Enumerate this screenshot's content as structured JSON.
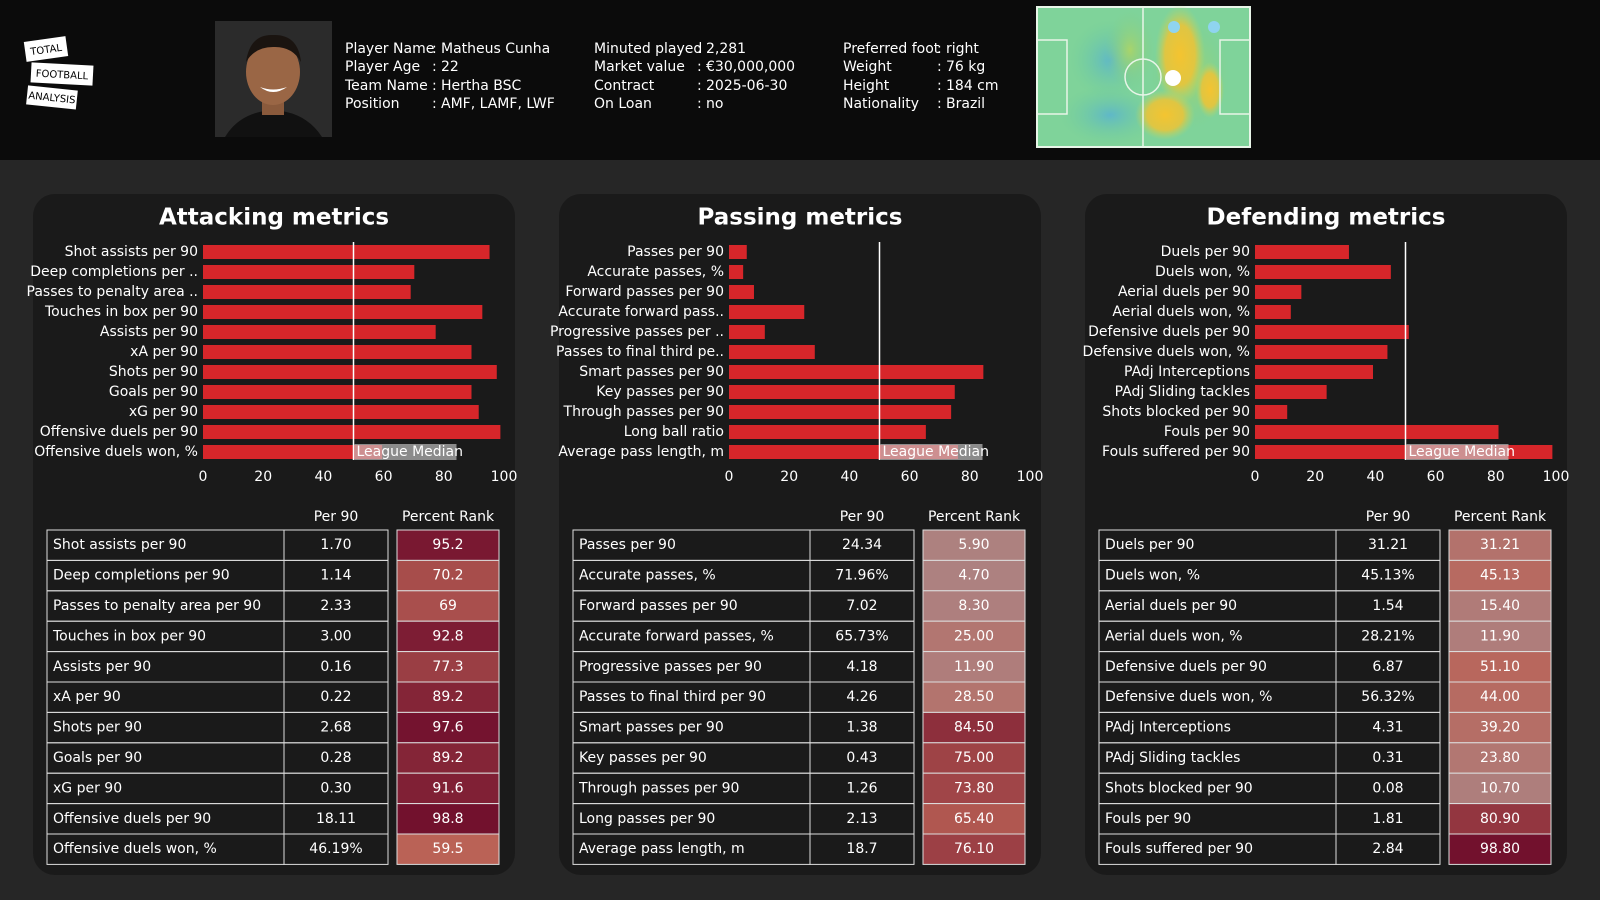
{
  "header": {
    "logo": [
      "TOTAL",
      "FOOTBALL",
      "ANALYSIS"
    ],
    "separator": ":",
    "info_columns": [
      [
        {
          "label": "Player Name",
          "value": "Matheus Cunha"
        },
        {
          "label": "Player Age",
          "value": "22"
        },
        {
          "label": "Team Name",
          "value": "Hertha BSC"
        },
        {
          "label": "Position",
          "value": "AMF, LAMF, LWF"
        }
      ],
      [
        {
          "label": "Minuted played",
          "value": "2,281"
        },
        {
          "label": "Market value",
          "value": "€30,000,000"
        },
        {
          "label": "Contract",
          "value": "2025-06-30"
        },
        {
          "label": "On Loan",
          "value": "no"
        }
      ],
      [
        {
          "label": "Preferred foot",
          "value": "right"
        },
        {
          "label": "Weight",
          "value": "76 kg"
        },
        {
          "label": "Height",
          "value": "184 cm"
        },
        {
          "label": "Nationality",
          "value": "Brazil"
        }
      ]
    ]
  },
  "chart_data": [
    {
      "type": "bar",
      "title": "Attacking metrics",
      "color": "#d7262a",
      "categories": [
        "Shot assists per 90",
        "Deep completions per ..",
        "Passes to penalty area ..",
        "Touches in box per 90",
        "Assists per 90",
        "xA per 90",
        "Shots per 90",
        "Goals per 90",
        "xG per 90",
        "Offensive duels per 90",
        "Offensive duels won, %"
      ],
      "values": [
        95.2,
        70.2,
        69,
        92.8,
        77.3,
        89.2,
        97.6,
        89.2,
        91.6,
        98.8,
        59.5
      ],
      "xlim": [
        0,
        100
      ],
      "xticks": [
        0,
        20,
        40,
        60,
        80,
        100
      ],
      "median": 50,
      "median_label": "League Median"
    },
    {
      "type": "bar",
      "title": "Passing metrics",
      "color": "#d7262a",
      "categories": [
        "Passes per 90",
        "Accurate passes, %",
        "Forward passes per 90",
        "Accurate forward pass..",
        "Progressive passes per ..",
        "Passes to final third pe..",
        "Smart passes per 90",
        "Key passes per 90",
        "Through passes per 90",
        "Long ball ratio",
        "Average pass length, m"
      ],
      "values": [
        5.9,
        4.7,
        8.3,
        25,
        11.9,
        28.5,
        84.5,
        75,
        73.8,
        65.4,
        76.1
      ],
      "xlim": [
        0,
        100
      ],
      "xticks": [
        0,
        20,
        40,
        60,
        80,
        100
      ],
      "median": 50,
      "median_label": "League Median"
    },
    {
      "type": "bar",
      "title": "Defending metrics",
      "color": "#d7262a",
      "categories": [
        "Duels per 90",
        "Duels won, %",
        "Aerial duels per 90",
        "Aerial duels won, %",
        "Defensive duels per 90",
        "Defensive duels won, %",
        "PAdj Interceptions",
        "PAdj Sliding tackles",
        "Shots blocked per 90",
        "Fouls per 90",
        "Fouls suffered per 90"
      ],
      "values": [
        31.21,
        45.13,
        15.4,
        11.9,
        51.1,
        44,
        39.2,
        23.8,
        10.7,
        80.9,
        98.8
      ],
      "xlim": [
        0,
        100
      ],
      "xticks": [
        0,
        20,
        40,
        60,
        80,
        100
      ],
      "median": 50,
      "median_label": "League Median"
    }
  ],
  "tables": [
    {
      "columns": [
        "Per 90",
        "Percent Rank"
      ],
      "rows": [
        [
          "Shot assists per 90",
          "1.70",
          "95.2"
        ],
        [
          "Deep completions per 90",
          "1.14",
          "70.2"
        ],
        [
          "Passes to penalty area per 90",
          "2.33",
          "69"
        ],
        [
          "Touches in box per 90",
          "3.00",
          "92.8"
        ],
        [
          "Assists per 90",
          "0.16",
          "77.3"
        ],
        [
          "xA per 90",
          "0.22",
          "89.2"
        ],
        [
          "Shots per 90",
          "2.68",
          "97.6"
        ],
        [
          "Goals per 90",
          "0.28",
          "89.2"
        ],
        [
          "xG per 90",
          "0.30",
          "91.6"
        ],
        [
          "Offensive duels per 90",
          "18.11",
          "98.8"
        ],
        [
          "Offensive duels won, %",
          "46.19%",
          "59.5"
        ]
      ]
    },
    {
      "columns": [
        "Per 90",
        "Percent Rank"
      ],
      "rows": [
        [
          "Passes per 90",
          "24.34",
          "5.90"
        ],
        [
          "Accurate passes, %",
          "71.96%",
          "4.70"
        ],
        [
          "Forward passes per 90",
          "7.02",
          "8.30"
        ],
        [
          "Accurate forward passes, %",
          "65.73%",
          "25.00"
        ],
        [
          "Progressive passes per 90",
          "4.18",
          "11.90"
        ],
        [
          "Passes to final third per 90",
          "4.26",
          "28.50"
        ],
        [
          "Smart passes per 90",
          "1.38",
          "84.50"
        ],
        [
          "Key passes per 90",
          "0.43",
          "75.00"
        ],
        [
          "Through passes per 90",
          "1.26",
          "73.80"
        ],
        [
          "Long passes per 90",
          "2.13",
          "65.40"
        ],
        [
          "Average pass length, m",
          "18.7",
          "76.10"
        ]
      ]
    },
    {
      "columns": [
        "Per 90",
        "Percent Rank"
      ],
      "rows": [
        [
          "Duels per 90",
          "31.21",
          "31.21"
        ],
        [
          "Duels won, %",
          "45.13%",
          "45.13"
        ],
        [
          "Aerial duels per 90",
          "1.54",
          "15.40"
        ],
        [
          "Aerial duels won, %",
          "28.21%",
          "11.90"
        ],
        [
          "Defensive duels per 90",
          "6.87",
          "51.10"
        ],
        [
          "Defensive duels won, %",
          "56.32%",
          "44.00"
        ],
        [
          "PAdj Interceptions",
          "4.31",
          "39.20"
        ],
        [
          "PAdj Sliding tackles",
          "0.31",
          "23.80"
        ],
        [
          "Shots blocked per 90",
          "0.08",
          "10.70"
        ],
        [
          "Fouls per 90",
          "1.81",
          "80.90"
        ],
        [
          "Fouls suffered per 90",
          "2.84",
          "98.80"
        ]
      ]
    }
  ]
}
